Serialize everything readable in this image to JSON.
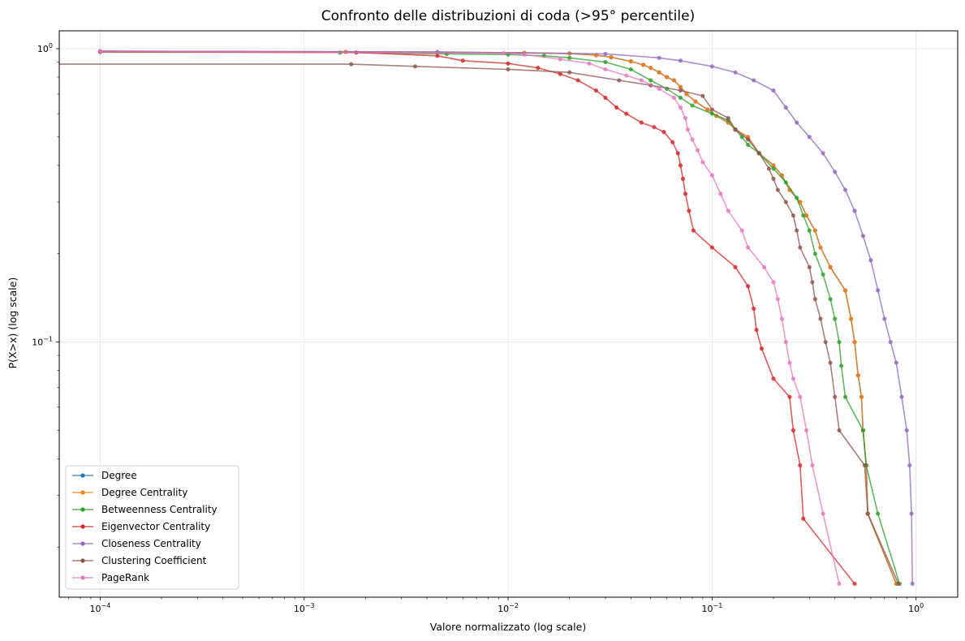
{
  "chart_data": {
    "type": "line",
    "title": "Confronto delle distribuzioni di coda (>95° percentile)",
    "xlabel": "Valore normalizzato (log scale)",
    "ylabel": "P(X>x) (log scale)",
    "xscale": "log",
    "yscale": "log",
    "xlim": [
      6.3e-05,
      1.6
    ],
    "ylim": [
      0.0135,
      1.15
    ],
    "grid": true,
    "legend_position": "lower-left",
    "x_ticks": [
      {
        "value": 0.0001,
        "base": "10",
        "exp": "−4"
      },
      {
        "value": 0.001,
        "base": "10",
        "exp": "−3"
      },
      {
        "value": 0.01,
        "base": "10",
        "exp": "−2"
      },
      {
        "value": 0.1,
        "base": "10",
        "exp": "−1"
      },
      {
        "value": 1,
        "base": "10",
        "exp": "0"
      }
    ],
    "y_ticks": [
      {
        "value": 0.1,
        "base": "10",
        "exp": "−1"
      },
      {
        "value": 1,
        "base": "10",
        "exp": "0"
      }
    ],
    "series": [
      {
        "name": "Degree",
        "color": "#1f77b4",
        "points": [
          [
            0.0001,
            0.98
          ],
          [
            0.0016,
            0.975
          ],
          [
            0.012,
            0.968
          ],
          [
            0.02,
            0.963
          ],
          [
            0.027,
            0.95
          ],
          [
            0.032,
            0.935
          ],
          [
            0.04,
            0.905
          ],
          [
            0.046,
            0.88
          ],
          [
            0.05,
            0.86
          ],
          [
            0.055,
            0.83
          ],
          [
            0.06,
            0.8
          ],
          [
            0.065,
            0.78
          ],
          [
            0.07,
            0.74
          ],
          [
            0.075,
            0.7
          ],
          [
            0.083,
            0.66
          ],
          [
            0.095,
            0.62
          ],
          [
            0.105,
            0.59
          ],
          [
            0.12,
            0.56
          ],
          [
            0.13,
            0.53
          ],
          [
            0.15,
            0.5
          ],
          [
            0.17,
            0.44
          ],
          [
            0.2,
            0.4
          ],
          [
            0.22,
            0.37
          ],
          [
            0.24,
            0.33
          ],
          [
            0.27,
            0.3
          ],
          [
            0.29,
            0.27
          ],
          [
            0.32,
            0.24
          ],
          [
            0.34,
            0.21
          ],
          [
            0.38,
            0.18
          ],
          [
            0.45,
            0.15
          ],
          [
            0.48,
            0.12
          ],
          [
            0.5,
            0.1
          ],
          [
            0.52,
            0.077
          ],
          [
            0.54,
            0.065
          ],
          [
            0.55,
            0.05
          ],
          [
            0.57,
            0.038
          ],
          [
            0.58,
            0.026
          ],
          [
            0.8,
            0.015
          ]
        ]
      },
      {
        "name": "Degree Centrality",
        "color": "#ff7f0e",
        "points": [
          [
            0.0001,
            0.98
          ],
          [
            0.0016,
            0.975
          ],
          [
            0.012,
            0.968
          ],
          [
            0.02,
            0.963
          ],
          [
            0.027,
            0.95
          ],
          [
            0.032,
            0.935
          ],
          [
            0.04,
            0.905
          ],
          [
            0.046,
            0.88
          ],
          [
            0.05,
            0.86
          ],
          [
            0.055,
            0.83
          ],
          [
            0.06,
            0.8
          ],
          [
            0.065,
            0.78
          ],
          [
            0.07,
            0.74
          ],
          [
            0.075,
            0.7
          ],
          [
            0.083,
            0.66
          ],
          [
            0.095,
            0.62
          ],
          [
            0.105,
            0.59
          ],
          [
            0.12,
            0.56
          ],
          [
            0.13,
            0.53
          ],
          [
            0.15,
            0.5
          ],
          [
            0.17,
            0.44
          ],
          [
            0.2,
            0.4
          ],
          [
            0.22,
            0.37
          ],
          [
            0.24,
            0.33
          ],
          [
            0.27,
            0.3
          ],
          [
            0.29,
            0.27
          ],
          [
            0.32,
            0.24
          ],
          [
            0.34,
            0.21
          ],
          [
            0.38,
            0.18
          ],
          [
            0.45,
            0.15
          ],
          [
            0.48,
            0.12
          ],
          [
            0.5,
            0.1
          ],
          [
            0.52,
            0.077
          ],
          [
            0.54,
            0.065
          ],
          [
            0.55,
            0.05
          ],
          [
            0.57,
            0.038
          ],
          [
            0.58,
            0.026
          ],
          [
            0.8,
            0.015
          ]
        ]
      },
      {
        "name": "Betweenness Centrality",
        "color": "#2ca02c",
        "points": [
          [
            0.0001,
            0.975
          ],
          [
            0.0015,
            0.97
          ],
          [
            0.005,
            0.96
          ],
          [
            0.01,
            0.955
          ],
          [
            0.015,
            0.945
          ],
          [
            0.02,
            0.93
          ],
          [
            0.03,
            0.9
          ],
          [
            0.04,
            0.85
          ],
          [
            0.05,
            0.78
          ],
          [
            0.06,
            0.73
          ],
          [
            0.07,
            0.68
          ],
          [
            0.08,
            0.64
          ],
          [
            0.1,
            0.6
          ],
          [
            0.12,
            0.57
          ],
          [
            0.13,
            0.53
          ],
          [
            0.14,
            0.5
          ],
          [
            0.15,
            0.47
          ],
          [
            0.17,
            0.44
          ],
          [
            0.2,
            0.39
          ],
          [
            0.23,
            0.35
          ],
          [
            0.26,
            0.31
          ],
          [
            0.28,
            0.27
          ],
          [
            0.3,
            0.24
          ],
          [
            0.32,
            0.2
          ],
          [
            0.35,
            0.17
          ],
          [
            0.38,
            0.14
          ],
          [
            0.4,
            0.12
          ],
          [
            0.42,
            0.1
          ],
          [
            0.43,
            0.083
          ],
          [
            0.45,
            0.065
          ],
          [
            0.55,
            0.05
          ],
          [
            0.57,
            0.038
          ],
          [
            0.65,
            0.026
          ],
          [
            0.83,
            0.015
          ]
        ]
      },
      {
        "name": "Eigenvector Centrality",
        "color": "#d62728",
        "points": [
          [
            0.0001,
            0.975
          ],
          [
            0.0018,
            0.97
          ],
          [
            0.0045,
            0.945
          ],
          [
            0.006,
            0.91
          ],
          [
            0.01,
            0.89
          ],
          [
            0.014,
            0.86
          ],
          [
            0.018,
            0.82
          ],
          [
            0.022,
            0.78
          ],
          [
            0.027,
            0.72
          ],
          [
            0.03,
            0.68
          ],
          [
            0.034,
            0.63
          ],
          [
            0.038,
            0.6
          ],
          [
            0.045,
            0.56
          ],
          [
            0.052,
            0.54
          ],
          [
            0.058,
            0.52
          ],
          [
            0.064,
            0.48
          ],
          [
            0.068,
            0.44
          ],
          [
            0.07,
            0.4
          ],
          [
            0.072,
            0.36
          ],
          [
            0.074,
            0.32
          ],
          [
            0.077,
            0.28
          ],
          [
            0.081,
            0.24
          ],
          [
            0.1,
            0.21
          ],
          [
            0.13,
            0.18
          ],
          [
            0.15,
            0.155
          ],
          [
            0.16,
            0.13
          ],
          [
            0.165,
            0.11
          ],
          [
            0.175,
            0.095
          ],
          [
            0.2,
            0.075
          ],
          [
            0.24,
            0.065
          ],
          [
            0.25,
            0.05
          ],
          [
            0.27,
            0.038
          ],
          [
            0.28,
            0.025
          ],
          [
            0.5,
            0.015
          ]
        ]
      },
      {
        "name": "Closeness Centrality",
        "color": "#9467bd",
        "points": [
          [
            0.0001,
            0.98
          ],
          [
            0.0045,
            0.975
          ],
          [
            0.03,
            0.96
          ],
          [
            0.055,
            0.93
          ],
          [
            0.07,
            0.91
          ],
          [
            0.1,
            0.87
          ],
          [
            0.13,
            0.83
          ],
          [
            0.16,
            0.78
          ],
          [
            0.2,
            0.72
          ],
          [
            0.23,
            0.63
          ],
          [
            0.26,
            0.56
          ],
          [
            0.3,
            0.5
          ],
          [
            0.35,
            0.44
          ],
          [
            0.4,
            0.38
          ],
          [
            0.45,
            0.33
          ],
          [
            0.5,
            0.28
          ],
          [
            0.55,
            0.23
          ],
          [
            0.6,
            0.19
          ],
          [
            0.65,
            0.15
          ],
          [
            0.7,
            0.12
          ],
          [
            0.75,
            0.1
          ],
          [
            0.8,
            0.085
          ],
          [
            0.85,
            0.065
          ],
          [
            0.9,
            0.05
          ],
          [
            0.93,
            0.038
          ],
          [
            0.95,
            0.026
          ],
          [
            0.96,
            0.015
          ]
        ]
      },
      {
        "name": "Clustering Coefficient",
        "color": "#8c564b",
        "points": [
          [
            5e-05,
            0.885
          ],
          [
            0.0017,
            0.885
          ],
          [
            0.0035,
            0.87
          ],
          [
            0.01,
            0.85
          ],
          [
            0.02,
            0.83
          ],
          [
            0.035,
            0.78
          ],
          [
            0.05,
            0.75
          ],
          [
            0.07,
            0.72
          ],
          [
            0.09,
            0.69
          ],
          [
            0.1,
            0.62
          ],
          [
            0.12,
            0.58
          ],
          [
            0.13,
            0.53
          ],
          [
            0.15,
            0.49
          ],
          [
            0.17,
            0.44
          ],
          [
            0.19,
            0.39
          ],
          [
            0.2,
            0.36
          ],
          [
            0.21,
            0.33
          ],
          [
            0.23,
            0.3
          ],
          [
            0.25,
            0.27
          ],
          [
            0.26,
            0.24
          ],
          [
            0.27,
            0.21
          ],
          [
            0.3,
            0.18
          ],
          [
            0.31,
            0.16
          ],
          [
            0.32,
            0.14
          ],
          [
            0.34,
            0.12
          ],
          [
            0.36,
            0.1
          ],
          [
            0.38,
            0.085
          ],
          [
            0.4,
            0.065
          ],
          [
            0.42,
            0.05
          ],
          [
            0.56,
            0.038
          ],
          [
            0.58,
            0.026
          ],
          [
            0.82,
            0.015
          ]
        ]
      },
      {
        "name": "PageRank",
        "color": "#e377c2",
        "points": [
          [
            0.0001,
            0.98
          ],
          [
            0.0095,
            0.965
          ],
          [
            0.012,
            0.955
          ],
          [
            0.018,
            0.92
          ],
          [
            0.025,
            0.89
          ],
          [
            0.03,
            0.85
          ],
          [
            0.038,
            0.81
          ],
          [
            0.045,
            0.78
          ],
          [
            0.055,
            0.73
          ],
          [
            0.065,
            0.68
          ],
          [
            0.07,
            0.63
          ],
          [
            0.074,
            0.58
          ],
          [
            0.076,
            0.53
          ],
          [
            0.08,
            0.49
          ],
          [
            0.085,
            0.45
          ],
          [
            0.09,
            0.41
          ],
          [
            0.1,
            0.37
          ],
          [
            0.11,
            0.32
          ],
          [
            0.12,
            0.28
          ],
          [
            0.14,
            0.24
          ],
          [
            0.15,
            0.21
          ],
          [
            0.18,
            0.18
          ],
          [
            0.2,
            0.16
          ],
          [
            0.21,
            0.14
          ],
          [
            0.22,
            0.12
          ],
          [
            0.23,
            0.1
          ],
          [
            0.24,
            0.085
          ],
          [
            0.25,
            0.075
          ],
          [
            0.27,
            0.065
          ],
          [
            0.29,
            0.05
          ],
          [
            0.31,
            0.038
          ],
          [
            0.35,
            0.026
          ],
          [
            0.42,
            0.015
          ]
        ]
      }
    ]
  }
}
